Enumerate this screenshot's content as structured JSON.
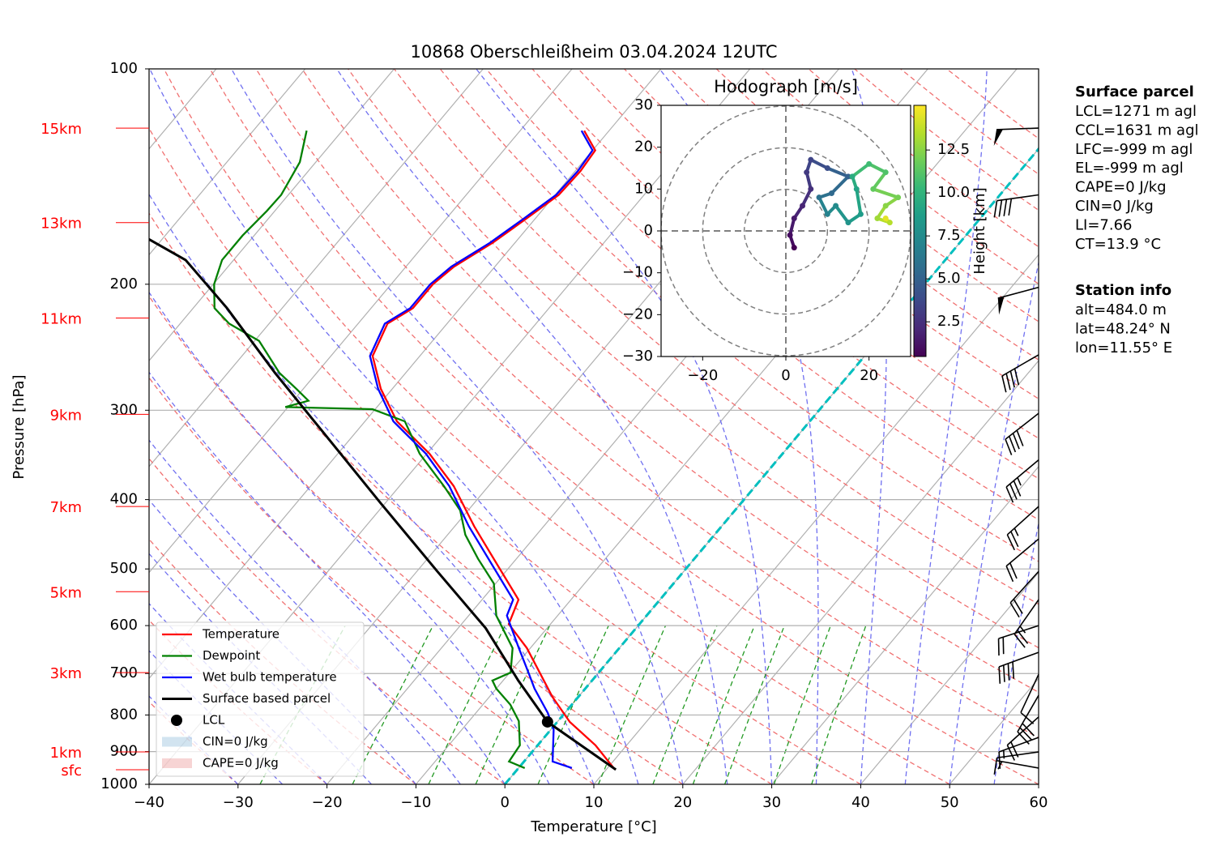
{
  "chart_data": [
    {
      "type": "skewt",
      "title": "10868 Oberschleißheim 03.04.2024 12UTC",
      "xlabel": "Temperature [°C]",
      "ylabel": "Pressure [hPa]",
      "xlim": [
        -40,
        60
      ],
      "xticks": [
        {
          "value": -40,
          "label": "−40"
        },
        {
          "value": -30,
          "label": "−30"
        },
        {
          "value": -20,
          "label": "−20"
        },
        {
          "value": -10,
          "label": "−10"
        },
        0,
        10,
        20,
        30,
        40,
        50,
        60
      ],
      "ylim": [
        1000,
        100
      ],
      "yticks": [
        1000,
        900,
        800,
        700,
        600,
        500,
        400,
        300,
        200,
        100
      ],
      "log_scale": true,
      "grid": true,
      "legend": "lower left",
      "height_labels": [
        {
          "label": "15km",
          "pressure": 121
        },
        {
          "label": "13km",
          "pressure": 164
        },
        {
          "label": "11km",
          "pressure": 223
        },
        {
          "label": "9km",
          "pressure": 304
        },
        {
          "label": "7km",
          "pressure": 409
        },
        {
          "label": "5km",
          "pressure": 538
        },
        {
          "label": "3km",
          "pressure": 698
        },
        {
          "label": "1km",
          "pressure": 901
        },
        {
          "label": "sfc",
          "pressure": 954
        }
      ],
      "height_label_color": "#ff0000",
      "series": [
        {
          "name": "Temperature",
          "color": "#ff0000",
          "pressure": [
            949,
            882,
            818,
            755,
            645,
            597,
            552,
            497,
            436,
            383,
            345,
            311,
            280,
            252,
            227,
            216,
            200,
            189,
            175,
            162,
            150,
            139,
            130,
            122
          ],
          "values": [
            10.7,
            6.5,
            1.4,
            -2.9,
            -10.4,
            -14.7,
            -15.9,
            -21.2,
            -27.8,
            -33.9,
            -39.7,
            -46.4,
            -51.3,
            -55.3,
            -56.7,
            -55.3,
            -55.3,
            -54.6,
            -52.5,
            -51.0,
            -49.6,
            -49.4,
            -49.7,
            -52.8
          ]
        },
        {
          "name": "Dewpoint",
          "color": "#008000",
          "pressure": [
            949,
            929,
            882,
            816,
            774,
            735,
            716,
            698,
            645,
            581,
            524,
            484,
            448,
            414,
            383,
            345,
            311,
            299,
            297,
            291,
            280,
            266,
            240,
            227,
            216,
            200,
            185,
            171,
            158,
            150,
            135,
            122
          ],
          "values": [
            0.7,
            -1.7,
            -2.0,
            -4.4,
            -6.9,
            -10.0,
            -11.2,
            -9.9,
            -12.0,
            -16.9,
            -20.2,
            -24.3,
            -28.0,
            -30.9,
            -35.0,
            -40.8,
            -45.5,
            -50.3,
            -60.3,
            -58.3,
            -60.8,
            -64.2,
            -69.5,
            -74.5,
            -77.6,
            -79.9,
            -81.3,
            -81.3,
            -80.9,
            -80.8,
            -81.8,
            -84.0
          ]
        },
        {
          "name": "Wet bulb temperature",
          "color": "#0000ff",
          "pressure": [
            949,
            929,
            838,
            795,
            735,
            698,
            645,
            581,
            552,
            497,
            436,
            383,
            345,
            311,
            280,
            252,
            227,
            216,
            200,
            189,
            175,
            162,
            150,
            139,
            130,
            122
          ],
          "values": [
            6.0,
            3.2,
            0.3,
            -1.9,
            -5.7,
            -7.9,
            -11.3,
            -15.7,
            -16.5,
            -21.8,
            -28.4,
            -34.4,
            -40.1,
            -46.8,
            -51.6,
            -55.6,
            -57.0,
            -55.6,
            -55.6,
            -54.9,
            -52.8,
            -51.3,
            -49.9,
            -49.7,
            -50.0,
            -53.1
          ]
        },
        {
          "name": "Surface based parcel",
          "color": "#000000",
          "pressure": [
            954,
            818,
            716,
            605,
            504,
            404,
            323,
            266,
            216,
            185,
            173
          ],
          "values": [
            11.1,
            -1.1,
            -8.3,
            -16.9,
            -27.7,
            -40.6,
            -53.5,
            -64.7,
            -76.2,
            -85.4,
            -91.5
          ]
        }
      ],
      "lcl": {
        "name": "LCL",
        "pressure": 818,
        "temperature": -1.1,
        "color": "#000000"
      },
      "cin": {
        "name": "CIN=0 J/kg",
        "color": "#1f77b4"
      },
      "cape": {
        "name": "CAPE=0 J/kg",
        "color": "#d62728"
      },
      "freezing_isotherm": {
        "value": 0,
        "color": "#00bfbf"
      },
      "winds": {
        "pressure": [
          121,
          150,
          202,
          251,
          303,
          352,
          409,
          454,
          504,
          552,
          600,
          654,
          702,
          751,
          805,
          860,
          901,
          949
        ],
        "speed": [
          50,
          40,
          50,
          40,
          40,
          35,
          25,
          20,
          20,
          25,
          20,
          40,
          10,
          30,
          20,
          15,
          10,
          5
        ],
        "direction": [
          268,
          262,
          255,
          240,
          232,
          230,
          228,
          230,
          222,
          215,
          252,
          250,
          205,
          210,
          228,
          250,
          262,
          280
        ]
      }
    },
    {
      "type": "hodograph",
      "title": "Hodograph [m/s]",
      "xlim": [
        -30,
        30
      ],
      "ylim": [
        -30,
        30
      ],
      "xticks": [
        {
          "value": -20,
          "label": "−20"
        },
        0,
        20
      ],
      "yticks": [
        {
          "value": -30,
          "label": "−30"
        },
        {
          "value": -20,
          "label": "−20"
        },
        {
          "value": -10,
          "label": "−10"
        },
        0,
        10,
        20,
        30
      ],
      "colormap": "viridis",
      "u": [
        2,
        1,
        2,
        4,
        6,
        5,
        6,
        10,
        15,
        11,
        8,
        10,
        12,
        15,
        18,
        17,
        16,
        20,
        24,
        21,
        27,
        24,
        22,
        25,
        24
      ],
      "v": [
        -4,
        -1,
        3,
        6,
        10,
        14,
        17,
        15,
        13,
        9,
        8,
        4,
        6,
        2,
        4,
        10,
        13,
        16,
        14,
        10,
        8,
        6,
        3,
        2,
        3
      ],
      "height": [
        0.5,
        1,
        1.5,
        2,
        2.5,
        3,
        3.5,
        4,
        5,
        5.5,
        6,
        7,
        7.5,
        8,
        8.5,
        9,
        9.5,
        10.5,
        11,
        11.5,
        12,
        12.5,
        13,
        13.5,
        14.5
      ],
      "colorbar": {
        "label": "Height [km]",
        "lim": [
          0.48,
          15.1
        ],
        "ticks": [
          {
            "value": 2.5,
            "label": "2.5"
          },
          {
            "value": 5,
            "label": "5.0"
          },
          {
            "value": 7.5,
            "label": "7.5"
          },
          {
            "value": 10,
            "label": "10.0"
          },
          {
            "value": 12.5,
            "label": "12.5"
          }
        ]
      }
    }
  ],
  "parcel_info": {
    "title": "Surface parcel",
    "lines": [
      "LCL=1271 m agl",
      "CCL=1631 m agl",
      "LFC=-999 m agl",
      "EL=-999 m agl",
      "CAPE=0 J/kg",
      "CIN=0 J/kg",
      "LI=7.66",
      "CT=13.9 °C"
    ]
  },
  "station_info": {
    "title": "Station info",
    "lines": [
      "alt=484.0 m",
      "lat=48.24° N",
      "lon=11.55° E"
    ]
  }
}
